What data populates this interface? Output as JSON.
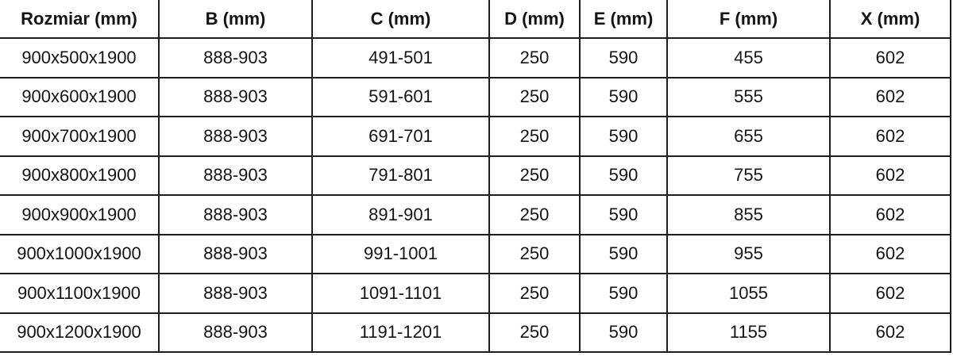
{
  "table": {
    "columns": [
      "Rozmiar (mm)",
      "B (mm)",
      "C (mm)",
      "D (mm)",
      "E (mm)",
      "F (mm)",
      "X (mm)"
    ],
    "column_keys": [
      "rozmiar",
      "b",
      "c",
      "d",
      "e",
      "f",
      "x"
    ],
    "rows": [
      [
        "900x500x1900",
        "888-903",
        "491-501",
        "250",
        "590",
        "455",
        "602"
      ],
      [
        "900x600x1900",
        "888-903",
        "591-601",
        "250",
        "590",
        "555",
        "602"
      ],
      [
        "900x700x1900",
        "888-903",
        "691-701",
        "250",
        "590",
        "655",
        "602"
      ],
      [
        "900x800x1900",
        "888-903",
        "791-801",
        "250",
        "590",
        "755",
        "602"
      ],
      [
        "900x900x1900",
        "888-903",
        "891-901",
        "250",
        "590",
        "855",
        "602"
      ],
      [
        "900x1000x1900",
        "888-903",
        "991-1001",
        "250",
        "590",
        "955",
        "602"
      ],
      [
        "900x1100x1900",
        "888-903",
        "1091-1101",
        "250",
        "590",
        "1055",
        "602"
      ],
      [
        "900x1200x1900",
        "888-903",
        "1191-1201",
        "250",
        "590",
        "1155",
        "602"
      ]
    ],
    "colors": {
      "border": "#1f1f1f",
      "text": "#141414",
      "background": "#ffffff"
    }
  }
}
